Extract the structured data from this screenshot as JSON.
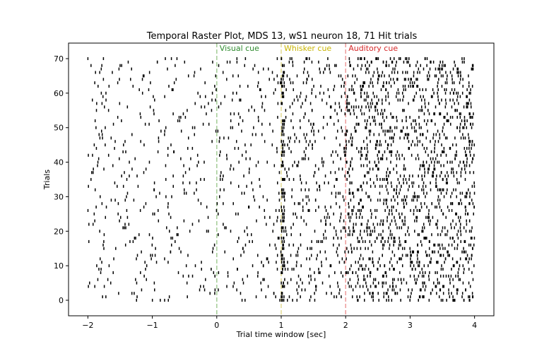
{
  "chart_data": {
    "type": "scatter",
    "title": "Temporal Raster Plot, MDS 13, wS1 neuron 18, 71 Hit trials",
    "xlabel": "Trial time window [sec]",
    "ylabel": "Trials",
    "xlim": [
      -2.3,
      4.3
    ],
    "ylim": [
      -4.5,
      74.5
    ],
    "x_ticks": [
      -2,
      -1,
      0,
      1,
      2,
      3,
      4
    ],
    "x_tick_labels": [
      "−2",
      "−1",
      "0",
      "1",
      "2",
      "3",
      "4"
    ],
    "y_ticks": [
      0,
      10,
      20,
      30,
      40,
      50,
      60,
      70
    ],
    "y_tick_labels": [
      "0",
      "10",
      "20",
      "30",
      "40",
      "50",
      "60",
      "70"
    ],
    "grid": false,
    "n_trials": 71,
    "marker": "vertical-tick",
    "spike_color": "#000000",
    "events": [
      {
        "label": "Visual cue",
        "x": 0,
        "color": "#2e8b2e",
        "line_color": "#a9cf9c"
      },
      {
        "label": "Whisker cue",
        "x": 1,
        "color": "#c8b400",
        "line_color": "#e4dd9a"
      },
      {
        "label": "Auditory cue",
        "x": 2,
        "color": "#d62728",
        "line_color": "#eea0a0"
      }
    ],
    "firing_rate_hz": [
      {
        "from": -2.0,
        "to": 0.0,
        "rate": 2.5
      },
      {
        "from": 0.0,
        "to": 1.0,
        "rate": 3.0
      },
      {
        "from": 1.0,
        "to": 1.05,
        "rate": 60
      },
      {
        "from": 1.05,
        "to": 2.0,
        "rate": 5.5
      },
      {
        "from": 2.0,
        "to": 4.0,
        "rate": 11
      }
    ]
  }
}
